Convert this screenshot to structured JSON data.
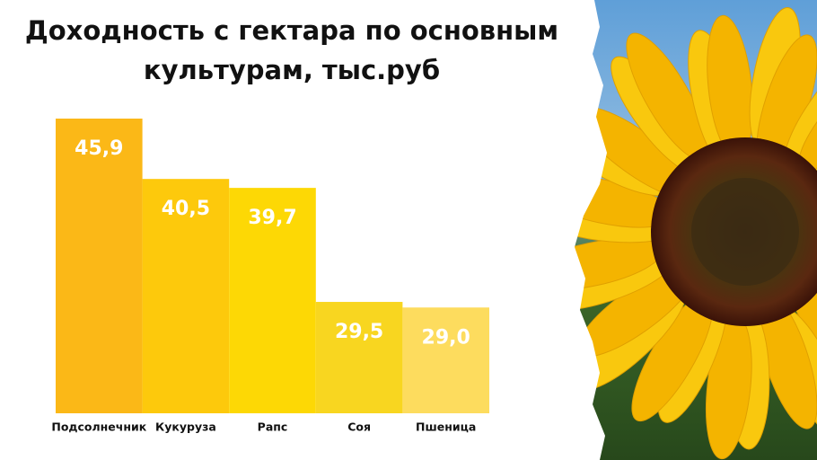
{
  "chart_data": {
    "type": "bar",
    "title": "Доходность с гектара по основным культурам, тыс.руб",
    "categories": [
      "Подсолнечник",
      "Кукуруза",
      "Рапс",
      "Соя",
      "Пшеница"
    ],
    "values": [
      45.9,
      40.5,
      39.7,
      29.5,
      29.0
    ],
    "value_labels": [
      "45,9",
      "40,5",
      "39,7",
      "29,5",
      "29,0"
    ],
    "colors": [
      "#fbb817",
      "#fdc90c",
      "#fdd805",
      "#f8d620",
      "#fddc5e"
    ]
  }
}
